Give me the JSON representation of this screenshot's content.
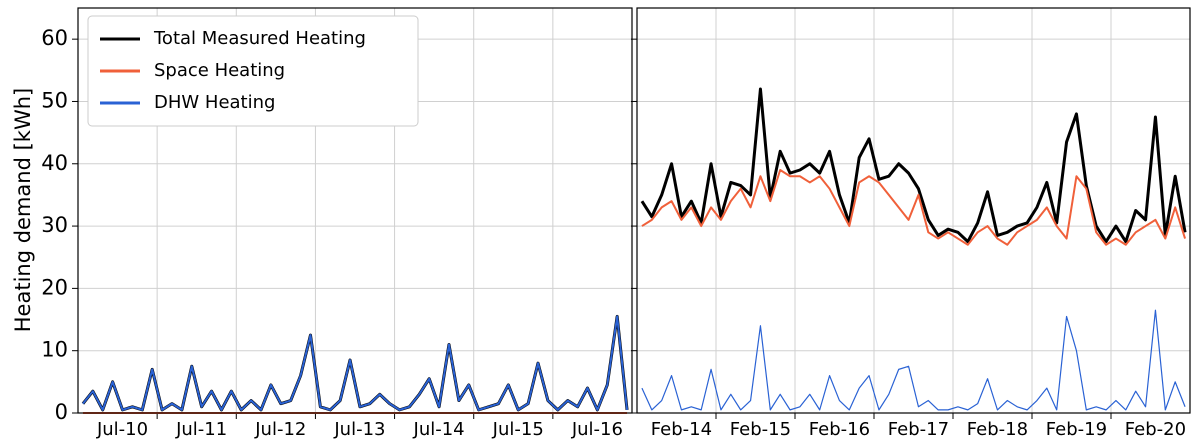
{
  "chart_data": [
    {
      "type": "line",
      "ylabel": "Heating demand [kWh]",
      "ylim": [
        0,
        65
      ],
      "yticks": [
        0,
        10,
        20,
        30,
        40,
        50,
        60
      ],
      "grid": true,
      "legend": "upper left",
      "show_ytick_labels": true,
      "categories": [
        null,
        null,
        null,
        null,
        "Jul-10",
        null,
        null,
        null,
        null,
        null,
        null,
        null,
        "Jul-11",
        null,
        null,
        null,
        null,
        null,
        null,
        null,
        "Jul-12",
        null,
        null,
        null,
        null,
        null,
        null,
        null,
        "Jul-13",
        null,
        null,
        null,
        null,
        null,
        null,
        null,
        "Jul-14",
        null,
        null,
        null,
        null,
        null,
        null,
        null,
        "Jul-15",
        null,
        null,
        null,
        null,
        null,
        null,
        null,
        "Jul-16",
        null,
        null,
        null
      ],
      "series": [
        {
          "name": "Total Measured Heating",
          "color": "#000000",
          "width": 3,
          "values": [
            1.5,
            3.5,
            0.5,
            5,
            0.5,
            1,
            0.5,
            7,
            0.5,
            1.5,
            0.5,
            7.5,
            1,
            3.5,
            0.5,
            3.5,
            0.5,
            2,
            0.5,
            4.5,
            1.5,
            2,
            6,
            12.5,
            1,
            0.5,
            2,
            8.5,
            1,
            1.5,
            3,
            1.5,
            0.5,
            1,
            3,
            5.5,
            1,
            11,
            2,
            4.5,
            0.5,
            1,
            1.5,
            4.5,
            0.5,
            1.5,
            8,
            2,
            0.5,
            2,
            1,
            4,
            0.5,
            4.5,
            15.5,
            0.5
          ]
        },
        {
          "name": "Space Heating",
          "color": "#f0603a",
          "width": 2,
          "values": [
            0,
            0,
            0,
            0,
            0,
            0,
            0,
            0,
            0,
            0,
            0,
            0,
            0,
            0,
            0,
            0,
            0,
            0,
            0,
            0,
            0,
            0,
            0,
            0,
            0,
            0,
            0,
            0,
            0,
            0,
            0,
            0,
            0,
            0,
            0,
            0,
            0,
            0,
            0,
            0,
            0,
            0,
            0,
            0,
            0,
            0,
            0,
            0,
            0,
            0,
            0,
            0,
            0,
            0,
            0,
            0
          ]
        },
        {
          "name": "DHW Heating",
          "color": "#2a62d4",
          "width": 2,
          "values": [
            1.5,
            3.5,
            0.5,
            5,
            0.5,
            1,
            0.5,
            7,
            0.5,
            1.5,
            0.5,
            7.5,
            1,
            3.5,
            0.5,
            3.5,
            0.5,
            2,
            0.5,
            4.5,
            1.5,
            2,
            6,
            12.5,
            1,
            0.5,
            2,
            8.5,
            1,
            1.5,
            3,
            1.5,
            0.5,
            1,
            3,
            5.5,
            1,
            11,
            2,
            4.5,
            0.5,
            1,
            1.5,
            4.5,
            0.5,
            1.5,
            8,
            2,
            0.5,
            2,
            1,
            4,
            0.5,
            4.5,
            15.5,
            0.5
          ]
        }
      ]
    },
    {
      "type": "line",
      "ylim": [
        0,
        65
      ],
      "yticks": [
        0,
        10,
        20,
        30,
        40,
        50,
        60
      ],
      "grid": true,
      "show_ytick_labels": false,
      "categories": [
        null,
        null,
        null,
        null,
        "Feb-14",
        null,
        null,
        null,
        null,
        null,
        null,
        null,
        "Feb-15",
        null,
        null,
        null,
        null,
        null,
        null,
        null,
        "Feb-16",
        null,
        null,
        null,
        null,
        null,
        null,
        null,
        "Feb-17",
        null,
        null,
        null,
        null,
        null,
        null,
        null,
        "Feb-18",
        null,
        null,
        null,
        null,
        null,
        null,
        null,
        "Feb-19",
        null,
        null,
        null,
        null,
        null,
        null,
        null,
        "Feb-20",
        null,
        null,
        null
      ],
      "series": [
        {
          "color": "#000000",
          "width": 3,
          "values": [
            34,
            31.5,
            35,
            40,
            31.5,
            34,
            30.5,
            40,
            31.5,
            37,
            36.5,
            35,
            52,
            34.5,
            42,
            38.5,
            39,
            40,
            38.5,
            42,
            35,
            30.5,
            41,
            44,
            37.5,
            38,
            40,
            38.5,
            36,
            31,
            28.5,
            29.5,
            29,
            27.5,
            30.5,
            35.5,
            28.5,
            29,
            30,
            30.5,
            33,
            37,
            30.5,
            43.5,
            48,
            36.5,
            30,
            27.5,
            30,
            27.5,
            32.5,
            31,
            47.5,
            28.5,
            38,
            29
          ]
        },
        {
          "color": "#f0603a",
          "width": 2,
          "values": [
            30,
            31,
            33,
            34,
            31,
            33,
            30,
            33,
            31,
            34,
            36,
            33,
            38,
            34,
            39,
            38,
            38,
            37,
            38,
            36,
            33,
            30,
            37,
            38,
            37,
            35,
            33,
            31,
            35,
            29,
            28,
            29,
            28,
            27,
            29,
            30,
            28,
            27,
            29,
            30,
            31,
            33,
            30,
            28,
            38,
            36,
            29,
            27,
            28,
            27,
            29,
            30,
            31,
            28,
            33,
            28
          ]
        },
        {
          "color": "#2a62d4",
          "width": 1.2,
          "values": [
            4,
            0.5,
            2,
            6,
            0.5,
            1,
            0.5,
            7,
            0.5,
            3,
            0.5,
            2,
            14,
            0.5,
            3,
            0.5,
            1,
            3,
            0.5,
            6,
            2,
            0.5,
            4,
            6,
            0.5,
            3,
            7,
            7.5,
            1,
            2,
            0.5,
            0.5,
            1,
            0.5,
            1.5,
            5.5,
            0.5,
            2,
            1,
            0.5,
            2,
            4,
            0.5,
            15.5,
            10,
            0.5,
            1,
            0.5,
            2,
            0.5,
            3.5,
            1,
            16.5,
            0.5,
            5,
            1
          ]
        }
      ]
    }
  ]
}
